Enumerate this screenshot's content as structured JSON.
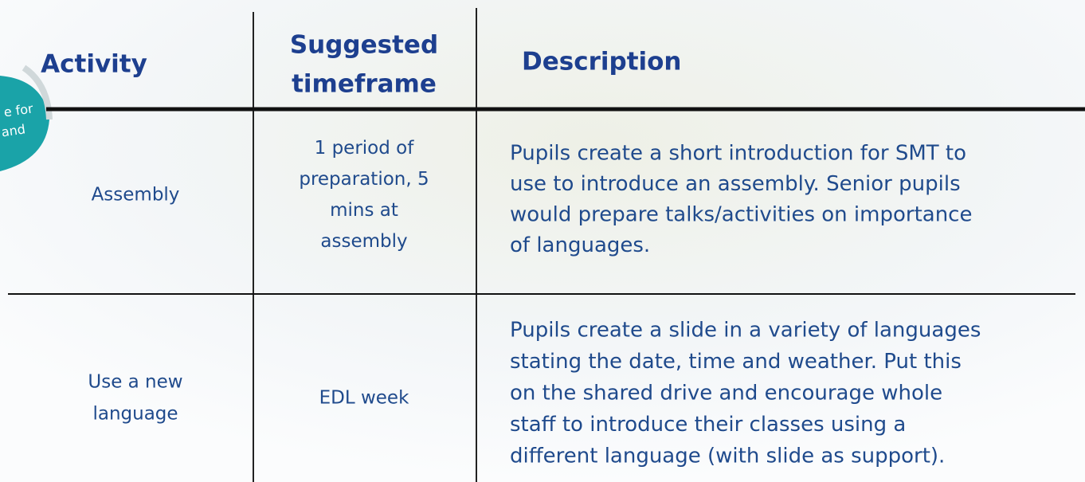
{
  "header": {
    "activity": "Activity",
    "timeframe": [
      "Suggested",
      "timeframe"
    ],
    "description": "Description"
  },
  "badge": [
    "e for",
    "and"
  ],
  "rows": [
    {
      "activity": [
        "Assembly"
      ],
      "timeframe": [
        "1 period of",
        "preparation, 5",
        "mins at",
        "assembly"
      ],
      "description": [
        "Pupils create a short introduction for SMT to",
        "use to introduce an assembly. Senior pupils",
        "would prepare talks/activities on importance",
        "of languages."
      ]
    },
    {
      "activity": [
        "Use a new",
        "language"
      ],
      "timeframe": [
        "EDL week"
      ],
      "description": [
        "Pupils create a slide in a variety of languages",
        "stating the date, time and weather. Put this",
        "on the shared drive and encourage whole",
        "staff to introduce their classes using a",
        "different language (with slide as support)."
      ]
    }
  ]
}
